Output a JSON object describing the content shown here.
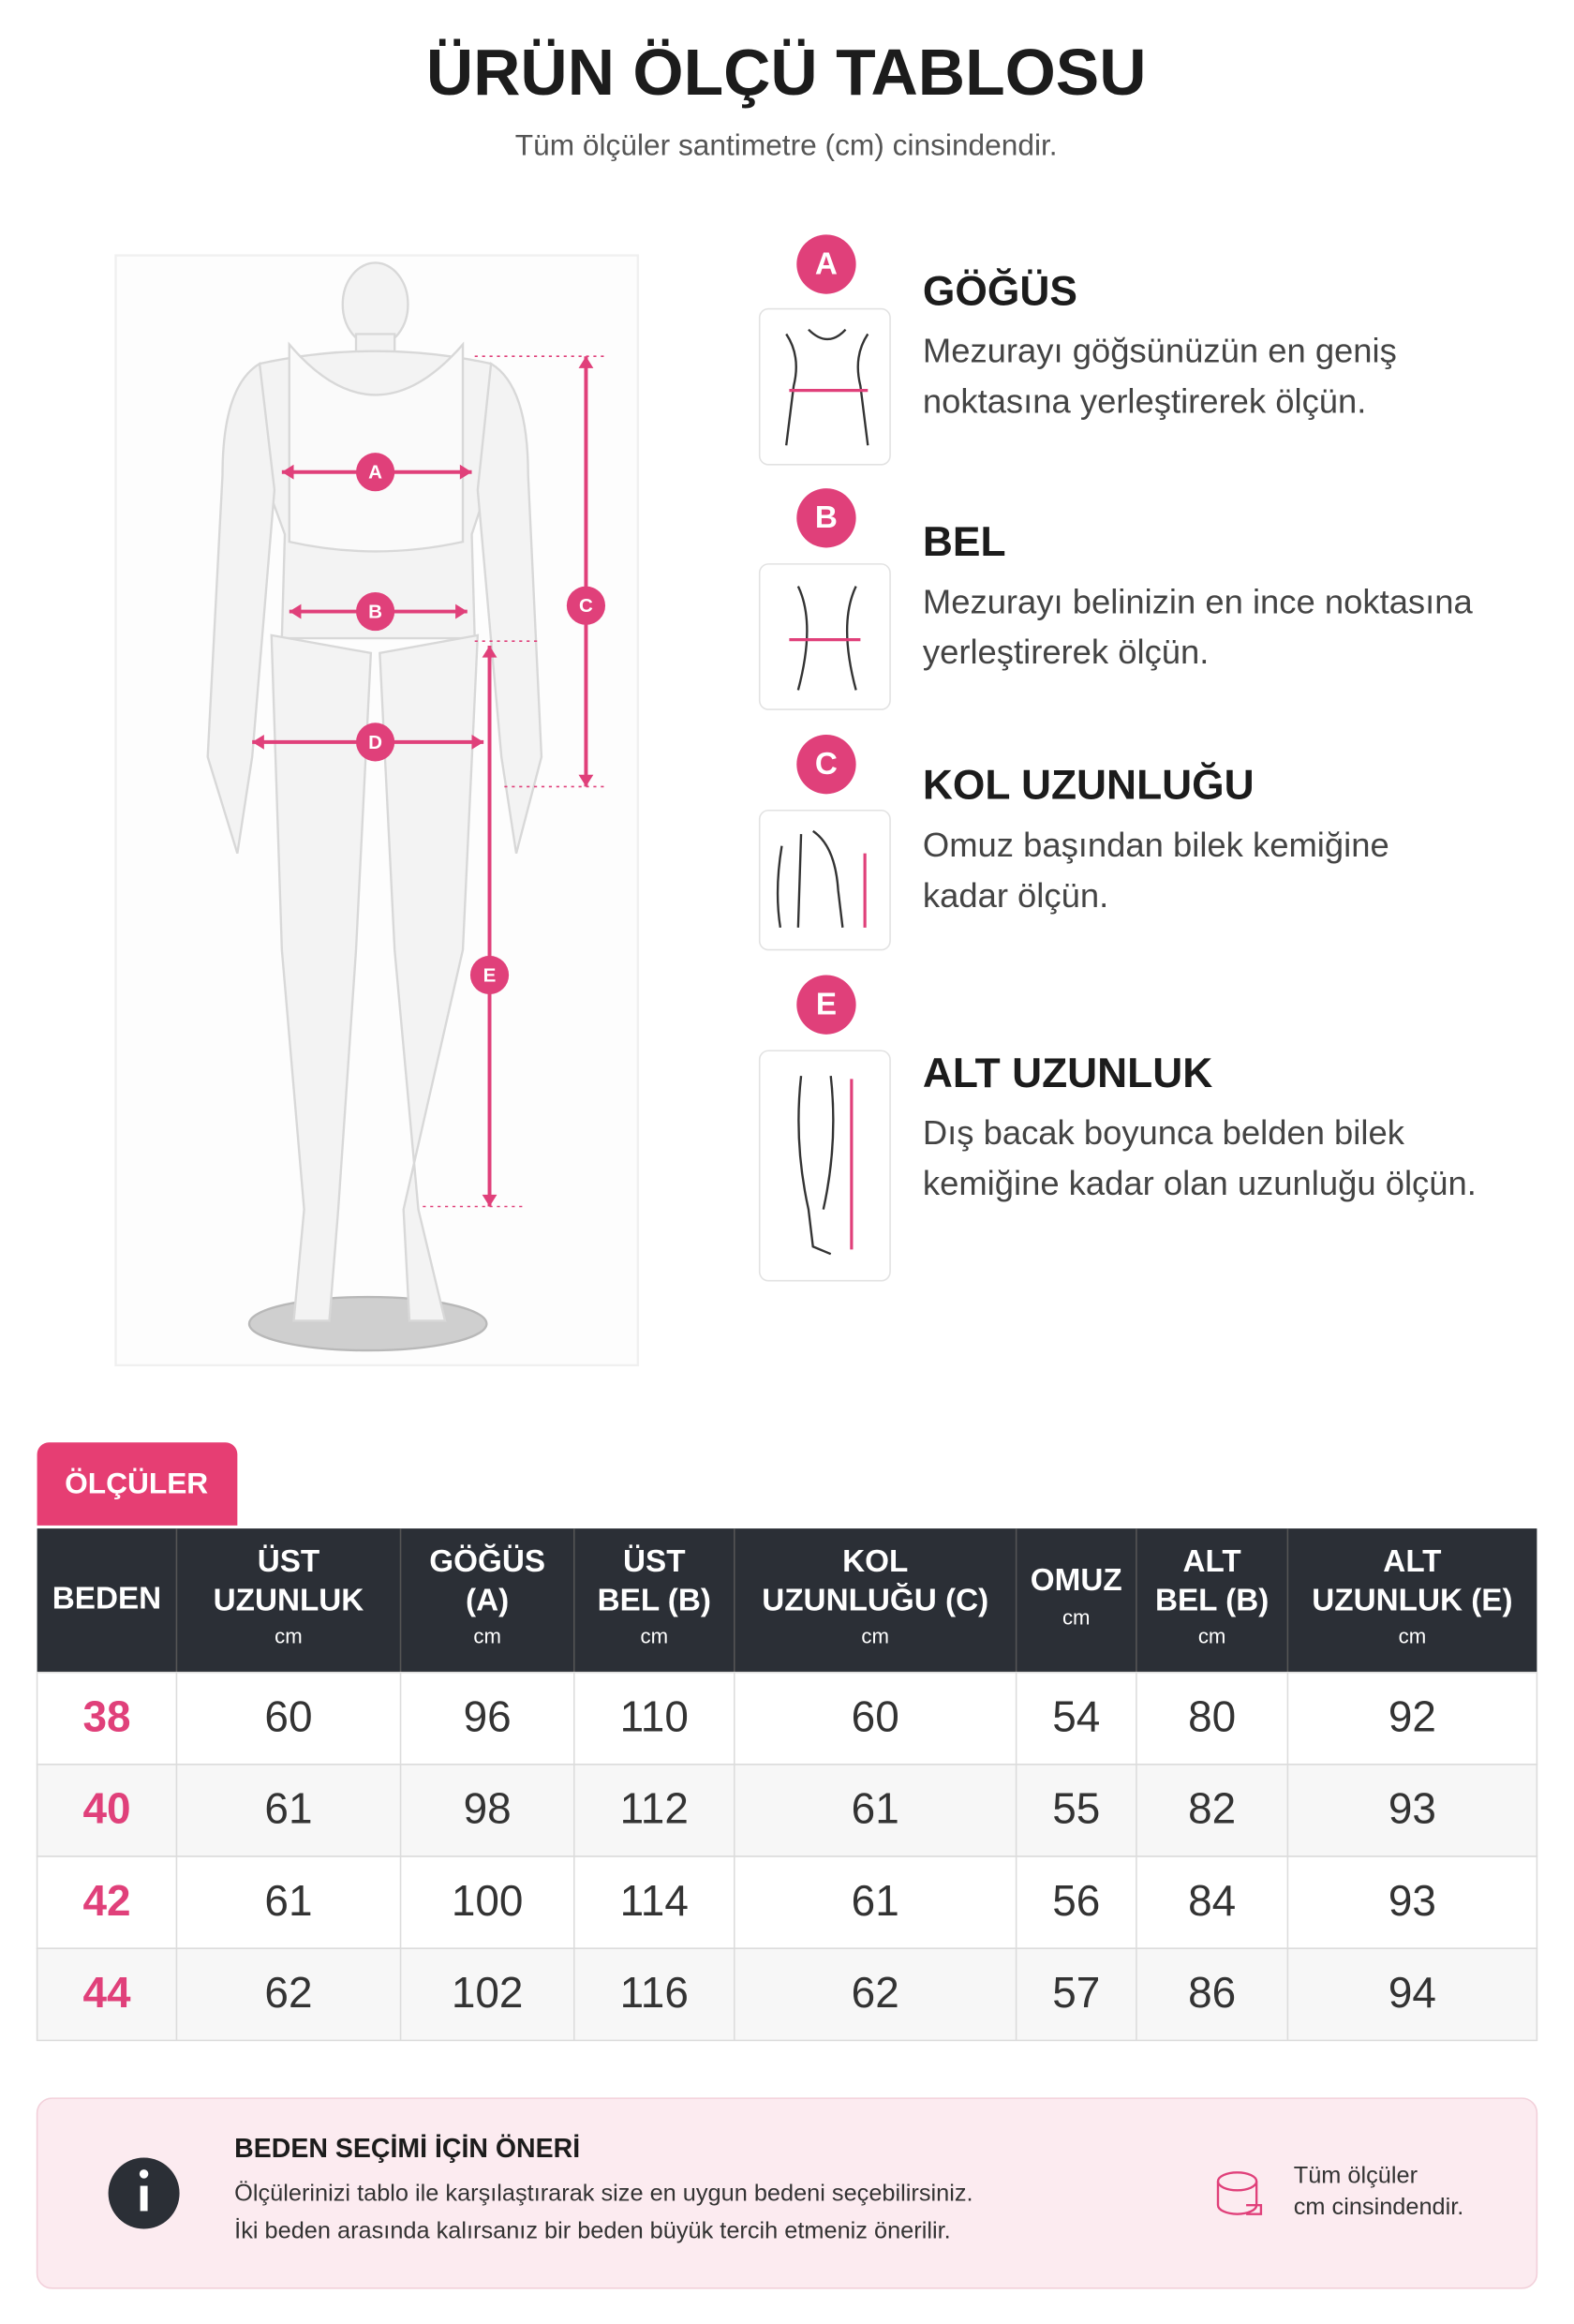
{
  "header": {
    "title": "ÜRÜN ÖLÇÜ TABLOSU",
    "subtitle": "Tüm ölçüler santimetre (cm) cinsindendir."
  },
  "figure": {
    "labels": [
      "A",
      "B",
      "C",
      "D",
      "E"
    ]
  },
  "measurements": [
    {
      "letter": "A",
      "title": "GÖĞÜS",
      "description": [
        "Mezurayı göğsünüzün en geniş",
        "noktasına yerleştirerek ölçün."
      ]
    },
    {
      "letter": "B",
      "title": "BEL",
      "description": [
        "Mezurayı belinizin en ince noktasına",
        "yerleştirerek ölçün."
      ]
    },
    {
      "letter": "C",
      "title": "KOL UZUNLUĞU",
      "description": [
        "Omuz başından bilek kemiğine",
        "kadar ölçün."
      ]
    },
    {
      "letter": "E",
      "title": "ALT UZUNLUK",
      "description": [
        "Dış bacak boyunca belden bilek",
        "kemiğine kadar olan uzunluğu ölçün."
      ]
    }
  ],
  "table": {
    "tab_label": "ÖLÇÜLER",
    "header": [
      {
        "lines": [
          "BEDEN"
        ]
      },
      {
        "lines": [
          "ÜST",
          "UZUNLUK"
        ],
        "unit": "cm"
      },
      {
        "lines": [
          "GÖĞÜS",
          "(A)"
        ],
        "unit": "cm"
      },
      {
        "lines": [
          "ÜST",
          "BEL (B)"
        ],
        "unit": "cm"
      },
      {
        "lines": [
          "KOL",
          "UZUNLUĞU (C)"
        ],
        "unit": "cm"
      },
      {
        "lines": [
          "OMUZ"
        ],
        "unit": "cm"
      },
      {
        "lines": [
          "ALT",
          "BEL (B)"
        ],
        "unit": "cm"
      },
      {
        "lines": [
          "ALT",
          "UZUNLUK (E)"
        ],
        "unit": "cm"
      }
    ],
    "rows": [
      [
        38,
        60,
        96,
        110,
        60,
        54,
        80,
        92
      ],
      [
        40,
        61,
        98,
        112,
        61,
        55,
        82,
        93
      ],
      [
        42,
        61,
        100,
        114,
        61,
        56,
        84,
        93
      ],
      [
        44,
        62,
        102,
        116,
        62,
        57,
        86,
        94
      ]
    ]
  },
  "note": {
    "title": "BEDEN SEÇİMİ İÇİN ÖNERİ",
    "lines": [
      "Ölçülerinizi tablo ile karşılaştırarak size en uygun bedeni seçebilirsiniz.",
      "İki beden arasında kalırsanız bir beden büyük tercih etmeniz önerilir."
    ],
    "side_lines": [
      "Tüm ölçüler",
      "cm cinsindendir."
    ]
  }
}
